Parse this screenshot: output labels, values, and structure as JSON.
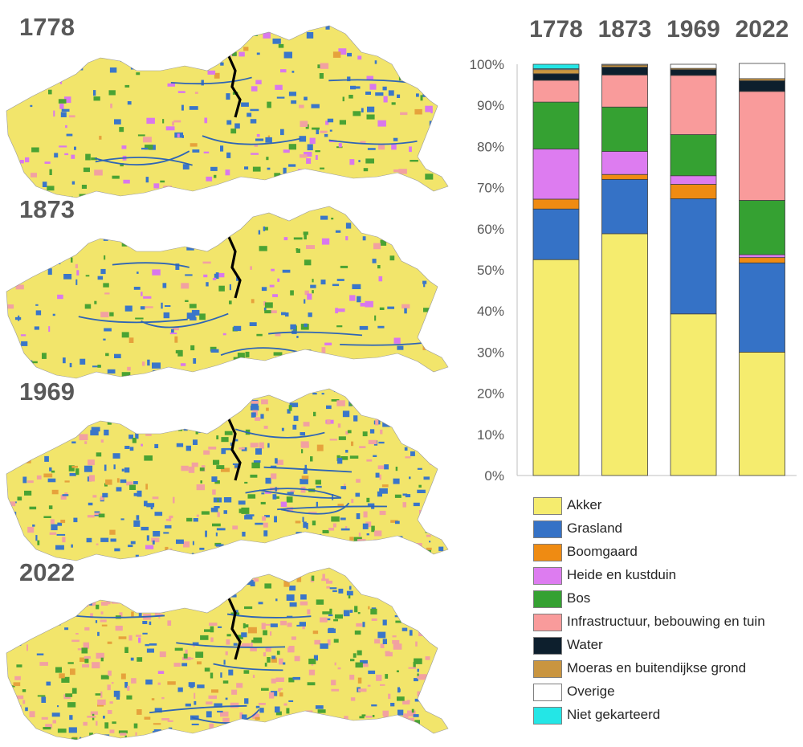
{
  "maps": [
    {
      "year": "1778",
      "palette": [
        "#f2e56b",
        "#3a76c9",
        "#4aa333",
        "#d978ec",
        "#f2a1a1",
        "#e6a23c"
      ],
      "weights": [
        62,
        13,
        11,
        9,
        3,
        2
      ]
    },
    {
      "year": "1873",
      "palette": [
        "#f2e56b",
        "#3a76c9",
        "#4aa333",
        "#d978ec",
        "#f2a1a1",
        "#e6a23c"
      ],
      "weights": [
        65,
        14,
        11,
        5,
        4,
        1
      ]
    },
    {
      "year": "1969",
      "palette": [
        "#f2e56b",
        "#3a76c9",
        "#4aa333",
        "#f2a1a1",
        "#d978ec",
        "#e6a23c"
      ],
      "weights": [
        42,
        27,
        11,
        14,
        2,
        4
      ]
    },
    {
      "year": "2022",
      "palette": [
        "#f2e56b",
        "#f2a1a1",
        "#3a76c9",
        "#4aa333",
        "#e6a23c",
        "#d978ec"
      ],
      "weights": [
        34,
        27,
        20,
        14,
        4,
        1
      ]
    }
  ],
  "chart_data": {
    "type": "bar",
    "stacked": true,
    "categories": [
      "1778",
      "1873",
      "1969",
      "2022"
    ],
    "ylim": [
      0,
      100
    ],
    "yticks": [
      "0%",
      "10%",
      "20%",
      "30%",
      "40%",
      "50%",
      "60%",
      "70%",
      "80%",
      "90%",
      "100%"
    ],
    "grid": false,
    "legend_position": "bottom",
    "series": [
      {
        "name": "Akker",
        "color": "#f5ec6e",
        "values": [
          52.5,
          58.8,
          39.3,
          30.0
        ]
      },
      {
        "name": "Grasland",
        "color": "#3572c6",
        "values": [
          12.3,
          13.2,
          28.0,
          21.7
        ]
      },
      {
        "name": "Boomgaard",
        "color": "#ef8b12",
        "values": [
          2.4,
          1.2,
          3.5,
          1.3
        ]
      },
      {
        "name": "Heide en kustduin",
        "color": "#dd7cf0",
        "values": [
          12.2,
          5.6,
          2.1,
          0.7
        ]
      },
      {
        "name": "Bos",
        "color": "#35a132",
        "values": [
          11.4,
          10.8,
          10.0,
          13.2
        ]
      },
      {
        "name": "Infrastructuur, bebouwing en tuin",
        "color": "#f99b9b",
        "values": [
          5.3,
          7.8,
          14.4,
          26.5
        ]
      },
      {
        "name": "Water",
        "color": "#0d1f2d",
        "values": [
          1.6,
          1.9,
          1.4,
          2.6
        ]
      },
      {
        "name": "Moeras en buitendijkse grond",
        "color": "#c99540",
        "values": [
          1.0,
          0.5,
          0.3,
          0.5
        ]
      },
      {
        "name": "Overige",
        "color": "#ffffff",
        "values": [
          0.2,
          0.2,
          1.0,
          3.7
        ]
      },
      {
        "name": "Niet gekarteerd",
        "color": "#24e6e6",
        "values": [
          1.1,
          0.0,
          0.0,
          0.0
        ]
      }
    ]
  }
}
